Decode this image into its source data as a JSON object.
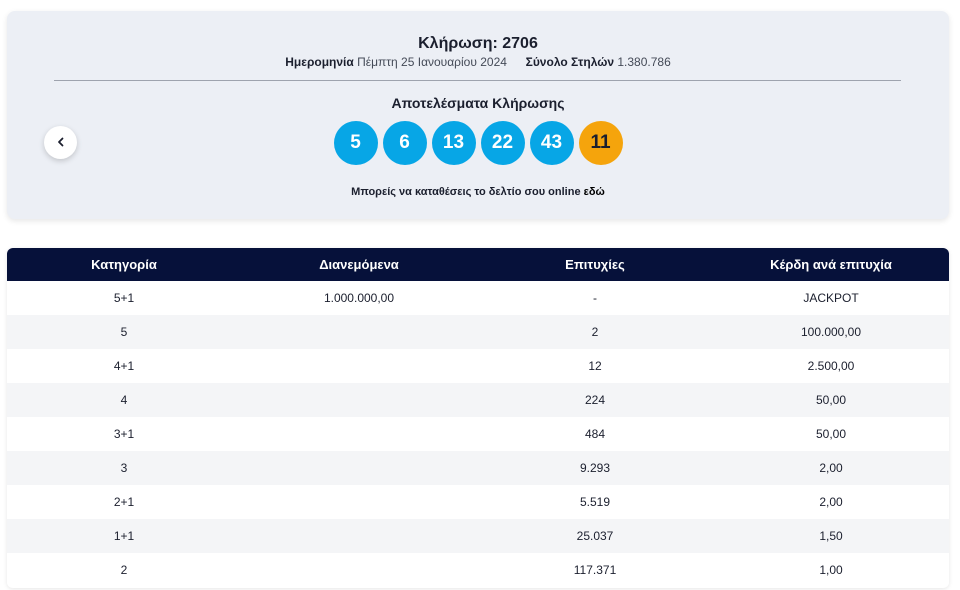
{
  "draw": {
    "title": "Κλήρωση: 2706",
    "date_label": "Ημερομηνία",
    "date_value": "Πέμπτη 25 Ιανουαρίου 2024",
    "columns_label": "Σύνολο Στηλών",
    "columns_value": "1.380.786",
    "results_title": "Αποτελέσματα Κλήρωσης",
    "numbers": [
      "5",
      "6",
      "13",
      "22",
      "43"
    ],
    "bonus_number": "11",
    "online_text": "Μπορείς να καταθέσεις το δελτίο σου online ",
    "online_link": "εδώ",
    "colors": {
      "main_ball": "#07a6e6",
      "bonus_ball": "#f5a40c",
      "header": "#06113a"
    },
    "prev_icon": "chevron-left-icon"
  },
  "table": {
    "headers": [
      "Κατηγορία",
      "Διανεμόμενα",
      "Επιτυχίες",
      "Κέρδη ανά επιτυχία"
    ],
    "rows": [
      [
        "5+1",
        "1.000.000,00",
        "-",
        "JACKPOT"
      ],
      [
        "5",
        "",
        "2",
        "100.000,00"
      ],
      [
        "4+1",
        "",
        "12",
        "2.500,00"
      ],
      [
        "4",
        "",
        "224",
        "50,00"
      ],
      [
        "3+1",
        "",
        "484",
        "50,00"
      ],
      [
        "3",
        "",
        "9.293",
        "2,00"
      ],
      [
        "2+1",
        "",
        "5.519",
        "2,00"
      ],
      [
        "1+1",
        "",
        "25.037",
        "1,50"
      ],
      [
        "2",
        "",
        "117.371",
        "1,00"
      ]
    ]
  }
}
